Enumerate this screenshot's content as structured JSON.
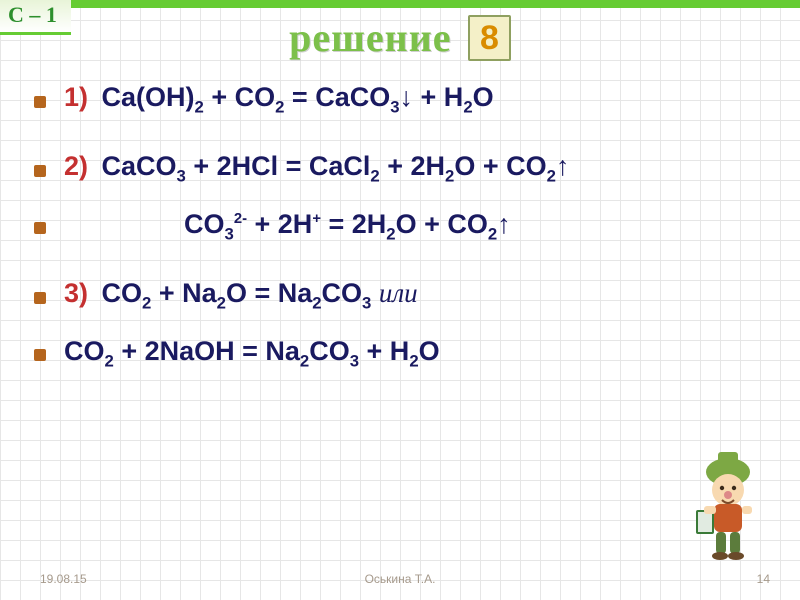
{
  "corner": {
    "text": "С – 1",
    "color": "#2d8f2d",
    "bg": "#e8f4d8",
    "fontsize": 22
  },
  "topbar_color": "#66cc33",
  "title": {
    "text": "решение",
    "color": "#7cc04a",
    "fontsize": 40
  },
  "badge": {
    "text": "8",
    "color": "#d98c00",
    "border": "#8fa060",
    "bg": "#f4f0c8",
    "fontsize": 34
  },
  "bullet_color": "#b5651d",
  "equations": [
    {
      "idx": "1)",
      "idx_color": "#c43030",
      "formula": "Ca(OH)<sub>2</sub> + CO<sub>2</sub> = CaCO<sub>3</sub>↓ + H<sub>2</sub>O",
      "color": "#1a1a60",
      "indent": 0,
      "gap": 34
    },
    {
      "idx": "2)",
      "idx_color": "#c43030",
      "formula": "CaCO<sub>3</sub> + 2HCl = CaCl<sub>2</sub> + 2H<sub>2</sub>O + CO<sub>2</sub>↑",
      "color": "#1a1a60",
      "indent": 0,
      "gap": 22
    },
    {
      "idx": "",
      "idx_color": "#c43030",
      "formula": "CO<sub>3</sub><sup>2-</sup> + 2H<sup>+</sup> =  2H<sub>2</sub>O + CO<sub>2</sub>↑",
      "color": "#1a1a60",
      "indent": 120,
      "gap": 34
    },
    {
      "idx": "3)",
      "idx_color": "#c43030",
      "formula": "CO<sub>2</sub> + Na<sub>2</sub>O = Na<sub>2</sub>CO<sub>3</sub>   <span style='font-family:Georgia,serif;font-style:italic;font-weight:normal'>или</span>",
      "color": "#1a1a60",
      "indent": 0,
      "gap": 22
    },
    {
      "idx": "",
      "idx_color": "#c43030",
      "formula": "CO<sub>2</sub> + 2NaOH = Na<sub>2</sub>CO<sub>3</sub> + H<sub>2</sub>O",
      "color": "#1a1a60",
      "indent": 0,
      "gap": 0
    }
  ],
  "eq_fontsize": 27,
  "footer": {
    "date": "19.08.15",
    "author": "Оськина Т.А.",
    "page": "14"
  },
  "decoration": {
    "hat": "#7da844",
    "face": "#f8d9b0",
    "shirt": "#c85a28",
    "pants": "#5c7c3c",
    "book": "#3a7a38"
  }
}
